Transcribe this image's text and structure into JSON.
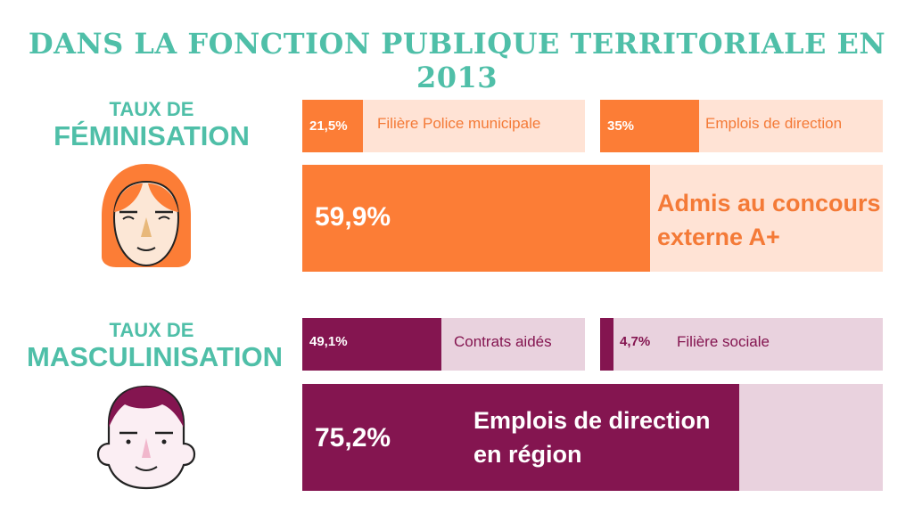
{
  "title": "DANS LA FONCTION PUBLIQUE TERRITORIALE EN 2013",
  "colors": {
    "title": "#4fbfa8",
    "feminisation_fill": "#fc7d36",
    "feminisation_bg": "#ffe3d5",
    "masculinisation_fill": "#841550",
    "masculinisation_bg": "#e9d2de"
  },
  "feminisation": {
    "label_small": "TAUX DE",
    "label_big": "FÉMINISATION",
    "icon": "woman-face-icon"
  },
  "masculinisation": {
    "label_small": "TAUX DE",
    "label_big": "MASCULINISATION",
    "icon": "man-face-icon"
  },
  "chart_data": {
    "type": "bar",
    "title": "DANS LA FONCTION PUBLIQUE TERRITORIALE EN 2013",
    "groups": [
      {
        "name": "TAUX DE FÉMINISATION",
        "bars": [
          {
            "label": "Filière Police municipale",
            "value": 21.5,
            "value_label": "21,5%"
          },
          {
            "label": "Emplois de direction",
            "value": 35,
            "value_label": "35%"
          },
          {
            "label_lines": [
              "Admis au concours",
              "externe A+"
            ],
            "value": 59.9,
            "value_label": "59,9%"
          }
        ]
      },
      {
        "name": "TAUX DE MASCULINISATION",
        "bars": [
          {
            "label": "Contrats aidés",
            "value": 49.1,
            "value_label": "49,1%"
          },
          {
            "label": "Filière sociale",
            "value": 4.7,
            "value_label": "4,7%"
          },
          {
            "label_lines": [
              "Emplois de direction",
              "en région"
            ],
            "value": 75.2,
            "value_label": "75,2%"
          }
        ]
      }
    ],
    "scale": [
      0,
      100
    ]
  }
}
